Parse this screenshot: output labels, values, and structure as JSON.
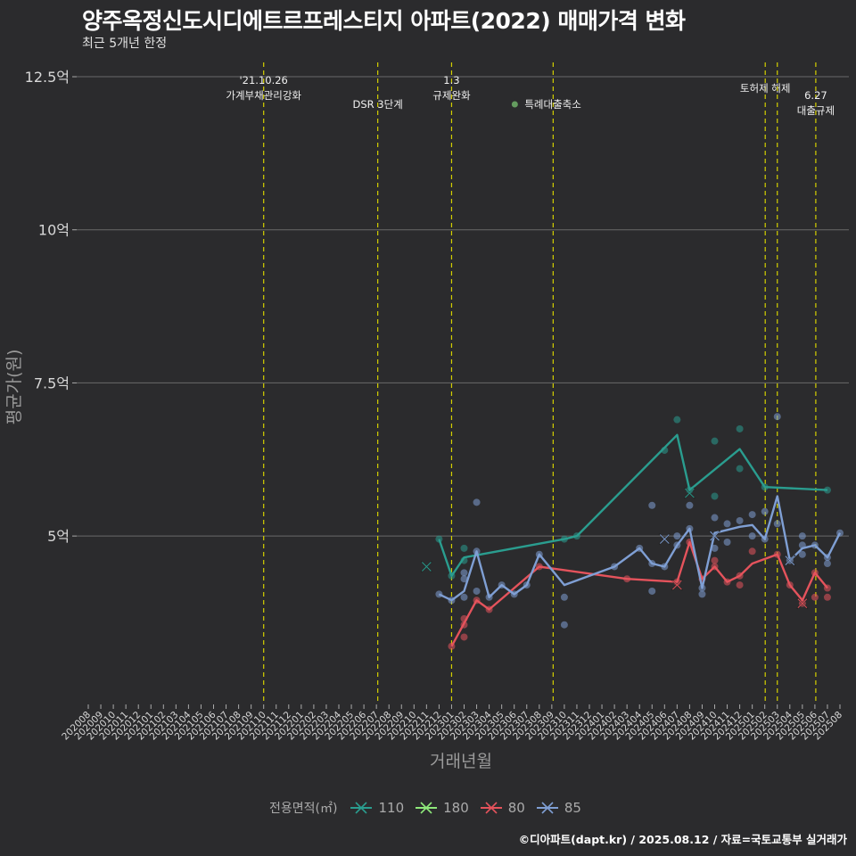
{
  "title": "양주옥정신도시디에트르프레스티지 아파트(2022) 매매가격 변화",
  "subtitle": "최근 5개년 한정",
  "footer": "©디아파트(dapt.kr) / 2025.08.12 / 자료=국토교통부 실거래가",
  "colors": {
    "background": "#2b2b2d",
    "grid": "#6a6a6a",
    "vline": "#d4d000",
    "s110": "#2a9d8f",
    "s180": "#8ee87a",
    "s80": "#e5535c",
    "s85": "#7f9fd4"
  },
  "chart_data": {
    "type": "line",
    "title": "양주옥정신도시디에트르프레스티지 아파트(2022) 매매가격 변화",
    "xlabel": "거래년월",
    "ylabel": "평균가(원)",
    "ylim": [
      2.25,
      12.85
    ],
    "yticks": [
      {
        "value": 5,
        "label": "5억"
      },
      {
        "value": 7.5,
        "label": "7.5억"
      },
      {
        "value": 10,
        "label": "10억"
      },
      {
        "value": 12.5,
        "label": "12.5억"
      }
    ],
    "categories": [
      "202008",
      "202009",
      "202010",
      "202011",
      "202012",
      "202101",
      "202102",
      "202103",
      "202104",
      "202105",
      "202106",
      "202107",
      "202108",
      "202109",
      "202110",
      "202111",
      "202112",
      "202201",
      "202202",
      "202203",
      "202204",
      "202205",
      "202206",
      "202207",
      "202208",
      "202209",
      "202210",
      "202211",
      "202212",
      "202301",
      "202302",
      "202303",
      "202304",
      "202305",
      "202306",
      "202307",
      "202308",
      "202309",
      "202310",
      "202311",
      "202312",
      "202401",
      "202402",
      "202403",
      "202404",
      "202405",
      "202406",
      "202407",
      "202408",
      "202409",
      "202410",
      "202411",
      "202412",
      "202501",
      "202502",
      "202503",
      "202504",
      "202505",
      "202506",
      "202507",
      "202508"
    ],
    "events": [
      {
        "index": 14,
        "lines": [
          "'21.10.26",
          "가계부채관리강화"
        ],
        "line_offset": 0
      },
      {
        "index": 23,
        "lines": [
          "DSR 3단계"
        ],
        "line_offset": 1.5
      },
      {
        "index": 29,
        "lines": [
          "1.3",
          "규제완화"
        ],
        "line_offset": 0
      },
      {
        "index": 37,
        "lines": [
          "특례대출축소"
        ],
        "line_offset": 1.5,
        "dot": true
      },
      {
        "index": 54,
        "lines": [
          "토허제 해제"
        ],
        "line_offset": 0.5
      },
      {
        "index": 55,
        "lines": [],
        "line_offset": 0
      },
      {
        "index": 58,
        "lines": [
          "6.27",
          "대출규제"
        ],
        "line_offset": 1
      }
    ],
    "legend_title": "전용면적(㎡)",
    "series": [
      {
        "name": "110",
        "line": [
          [
            28,
            4.95
          ],
          [
            29,
            4.35
          ],
          [
            30,
            4.65
          ],
          [
            38,
            4.95
          ],
          [
            39,
            5.0
          ],
          [
            47,
            6.65
          ],
          [
            48,
            5.75
          ],
          [
            52,
            6.42
          ],
          [
            54,
            5.8
          ],
          [
            59,
            5.75
          ]
        ],
        "points": [
          [
            28,
            4.95
          ],
          [
            29,
            4.35
          ],
          [
            30,
            4.8
          ],
          [
            30,
            4.6
          ],
          [
            38,
            4.95
          ],
          [
            39,
            5.0
          ],
          [
            46,
            6.4
          ],
          [
            47,
            6.9
          ],
          [
            48,
            5.75
          ],
          [
            50,
            6.55
          ],
          [
            50,
            5.65
          ],
          [
            52,
            6.75
          ],
          [
            52,
            6.1
          ],
          [
            54,
            5.8
          ],
          [
            59,
            5.75
          ]
        ],
        "crosses": [
          [
            27,
            4.5
          ],
          [
            48,
            5.7
          ]
        ]
      },
      {
        "name": "180",
        "line": [],
        "points": [],
        "crosses": []
      },
      {
        "name": "80",
        "line": [
          [
            29,
            3.2
          ],
          [
            31,
            3.95
          ],
          [
            32,
            3.8
          ],
          [
            36,
            4.5
          ],
          [
            43,
            4.3
          ],
          [
            47,
            4.25
          ],
          [
            48,
            4.9
          ],
          [
            49,
            4.3
          ],
          [
            50,
            4.5
          ],
          [
            51,
            4.25
          ],
          [
            52,
            4.35
          ],
          [
            53,
            4.55
          ],
          [
            55,
            4.7
          ],
          [
            56,
            4.2
          ],
          [
            57,
            3.95
          ],
          [
            58,
            4.4
          ],
          [
            59,
            4.15
          ]
        ],
        "points": [
          [
            29,
            3.2
          ],
          [
            30,
            3.55
          ],
          [
            30,
            3.65
          ],
          [
            30,
            3.35
          ],
          [
            31,
            3.95
          ],
          [
            32,
            3.8
          ],
          [
            36,
            4.5
          ],
          [
            43,
            4.3
          ],
          [
            47,
            4.25
          ],
          [
            48,
            4.9
          ],
          [
            49,
            4.3
          ],
          [
            50,
            4.5
          ],
          [
            50,
            4.6
          ],
          [
            51,
            4.25
          ],
          [
            52,
            4.35
          ],
          [
            52,
            4.2
          ],
          [
            53,
            4.75
          ],
          [
            55,
            4.7
          ],
          [
            56,
            4.2
          ],
          [
            57,
            3.9
          ],
          [
            58,
            4.4
          ],
          [
            58,
            4.0
          ],
          [
            59,
            4.15
          ],
          [
            59,
            4.0
          ]
        ],
        "crosses": [
          [
            47,
            4.2
          ],
          [
            57,
            3.9
          ]
        ]
      },
      {
        "name": "85",
        "line": [
          [
            28,
            4.05
          ],
          [
            29,
            3.95
          ],
          [
            30,
            4.1
          ],
          [
            31,
            4.75
          ],
          [
            32,
            4.0
          ],
          [
            33,
            4.2
          ],
          [
            34,
            4.05
          ],
          [
            35,
            4.2
          ],
          [
            36,
            4.7
          ],
          [
            38,
            4.2
          ],
          [
            42,
            4.5
          ],
          [
            44,
            4.8
          ],
          [
            45,
            4.55
          ],
          [
            46,
            4.5
          ],
          [
            47,
            4.85
          ],
          [
            48,
            5.12
          ],
          [
            49,
            4.15
          ],
          [
            50,
            5.05
          ],
          [
            51,
            5.1
          ],
          [
            52,
            5.15
          ],
          [
            53,
            5.18
          ],
          [
            54,
            4.95
          ],
          [
            55,
            5.65
          ],
          [
            56,
            4.6
          ],
          [
            57,
            4.8
          ],
          [
            58,
            4.85
          ],
          [
            59,
            4.65
          ],
          [
            60,
            5.05
          ]
        ],
        "points": [
          [
            28,
            4.05
          ],
          [
            29,
            3.95
          ],
          [
            30,
            4.4
          ],
          [
            30,
            4.3
          ],
          [
            30,
            4.0
          ],
          [
            31,
            4.75
          ],
          [
            31,
            4.1
          ],
          [
            31,
            5.55
          ],
          [
            32,
            4.0
          ],
          [
            33,
            4.2
          ],
          [
            34,
            4.05
          ],
          [
            35,
            4.2
          ],
          [
            36,
            4.7
          ],
          [
            38,
            3.55
          ],
          [
            38,
            4.0
          ],
          [
            42,
            4.5
          ],
          [
            44,
            4.8
          ],
          [
            45,
            4.55
          ],
          [
            45,
            4.1
          ],
          [
            45,
            5.5
          ],
          [
            46,
            4.5
          ],
          [
            47,
            4.85
          ],
          [
            47,
            5.0
          ],
          [
            48,
            5.12
          ],
          [
            48,
            5.5
          ],
          [
            49,
            4.15
          ],
          [
            49,
            4.05
          ],
          [
            50,
            5.3
          ],
          [
            50,
            4.8
          ],
          [
            51,
            5.2
          ],
          [
            51,
            4.9
          ],
          [
            52,
            5.25
          ],
          [
            53,
            5.35
          ],
          [
            53,
            5.0
          ],
          [
            54,
            4.95
          ],
          [
            54,
            5.4
          ],
          [
            55,
            6.95
          ],
          [
            55,
            5.2
          ],
          [
            56,
            4.6
          ],
          [
            57,
            4.85
          ],
          [
            57,
            5.0
          ],
          [
            57,
            4.7
          ],
          [
            58,
            4.85
          ],
          [
            59,
            4.65
          ],
          [
            59,
            4.55
          ],
          [
            60,
            5.05
          ]
        ],
        "crosses": [
          [
            46,
            4.95
          ],
          [
            50,
            5.0
          ],
          [
            56,
            4.6
          ]
        ]
      }
    ]
  }
}
